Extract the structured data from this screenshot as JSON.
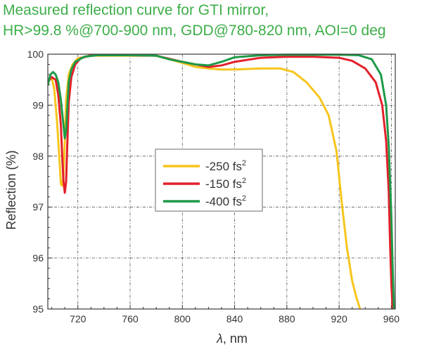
{
  "chart_data": {
    "type": "line",
    "title_line1": "Measured reflection curve for GTI mirror,",
    "title_line2": "HR>99.8 %@700-900 nm, GDD@780-820 nm, AOI=0 deg",
    "xlabel_symbol": "λ",
    "xlabel_unit": ", nm",
    "ylabel": "Reflection (%)",
    "xlim": [
      697,
      963
    ],
    "ylim": [
      95,
      100
    ],
    "x_ticks": [
      720,
      760,
      800,
      840,
      880,
      920,
      960
    ],
    "y_ticks": [
      95,
      96,
      97,
      98,
      99,
      100
    ],
    "grid": true,
    "legend_position": "center-left",
    "series": [
      {
        "name": "-250 fs",
        "superscript": "2",
        "color": "#f7c51c",
        "points": [
          [
            697,
            99.5
          ],
          [
            700,
            99.55
          ],
          [
            702,
            99.3
          ],
          [
            704,
            98.7
          ],
          [
            706,
            97.9
          ],
          [
            707,
            97.45
          ],
          [
            708,
            97.42
          ],
          [
            709,
            97.6
          ],
          [
            710,
            98.3
          ],
          [
            711,
            99.1
          ],
          [
            713,
            99.6
          ],
          [
            716,
            99.8
          ],
          [
            720,
            99.92
          ],
          [
            730,
            99.97
          ],
          [
            760,
            99.97
          ],
          [
            780,
            99.97
          ],
          [
            790,
            99.9
          ],
          [
            800,
            99.83
          ],
          [
            810,
            99.75
          ],
          [
            820,
            99.72
          ],
          [
            830,
            99.7
          ],
          [
            840,
            99.7
          ],
          [
            860,
            99.72
          ],
          [
            875,
            99.72
          ],
          [
            885,
            99.65
          ],
          [
            895,
            99.45
          ],
          [
            905,
            99.15
          ],
          [
            912,
            98.8
          ],
          [
            918,
            98.1
          ],
          [
            922,
            97.1
          ],
          [
            926,
            96.2
          ],
          [
            930,
            95.55
          ],
          [
            933,
            95.25
          ],
          [
            936,
            95
          ]
        ]
      },
      {
        "name": "-150 fs",
        "superscript": "2",
        "color": "#e3202a",
        "points": [
          [
            697,
            99.45
          ],
          [
            700,
            99.55
          ],
          [
            703,
            99.5
          ],
          [
            705,
            99.2
          ],
          [
            707,
            98.6
          ],
          [
            708,
            98.0
          ],
          [
            709,
            97.5
          ],
          [
            710,
            97.28
          ],
          [
            711,
            97.5
          ],
          [
            712,
            98.3
          ],
          [
            713,
            99.05
          ],
          [
            715,
            99.55
          ],
          [
            718,
            99.8
          ],
          [
            722,
            99.92
          ],
          [
            730,
            99.98
          ],
          [
            760,
            99.98
          ],
          [
            780,
            99.97
          ],
          [
            800,
            99.85
          ],
          [
            810,
            99.8
          ],
          [
            820,
            99.75
          ],
          [
            830,
            99.78
          ],
          [
            840,
            99.85
          ],
          [
            860,
            99.93
          ],
          [
            880,
            99.95
          ],
          [
            900,
            99.95
          ],
          [
            920,
            99.93
          ],
          [
            930,
            99.87
          ],
          [
            940,
            99.72
          ],
          [
            948,
            99.45
          ],
          [
            953,
            99.0
          ],
          [
            956,
            98.3
          ],
          [
            958,
            97.3
          ],
          [
            959,
            96.3
          ],
          [
            960,
            95.5
          ],
          [
            961,
            95
          ]
        ]
      },
      {
        "name": "-400 fs",
        "superscript": "2",
        "color": "#1e9a48",
        "points": [
          [
            697,
            99.4
          ],
          [
            699,
            99.6
          ],
          [
            701,
            99.65
          ],
          [
            703,
            99.6
          ],
          [
            705,
            99.45
          ],
          [
            707,
            99.1
          ],
          [
            709,
            98.6
          ],
          [
            710,
            98.35
          ],
          [
            711,
            98.5
          ],
          [
            712,
            99.0
          ],
          [
            713,
            99.45
          ],
          [
            715,
            99.7
          ],
          [
            718,
            99.85
          ],
          [
            725,
            99.95
          ],
          [
            735,
            99.98
          ],
          [
            760,
            99.98
          ],
          [
            780,
            99.97
          ],
          [
            790,
            99.9
          ],
          [
            800,
            99.85
          ],
          [
            810,
            99.8
          ],
          [
            820,
            99.78
          ],
          [
            830,
            99.85
          ],
          [
            840,
            99.94
          ],
          [
            860,
            99.98
          ],
          [
            880,
            99.99
          ],
          [
            900,
            99.99
          ],
          [
            920,
            99.99
          ],
          [
            935,
            99.98
          ],
          [
            945,
            99.9
          ],
          [
            952,
            99.6
          ],
          [
            956,
            99.0
          ],
          [
            958,
            98.2
          ],
          [
            959,
            97.5
          ],
          [
            960,
            96.8
          ],
          [
            961,
            95.8
          ],
          [
            962,
            95
          ]
        ]
      }
    ]
  }
}
